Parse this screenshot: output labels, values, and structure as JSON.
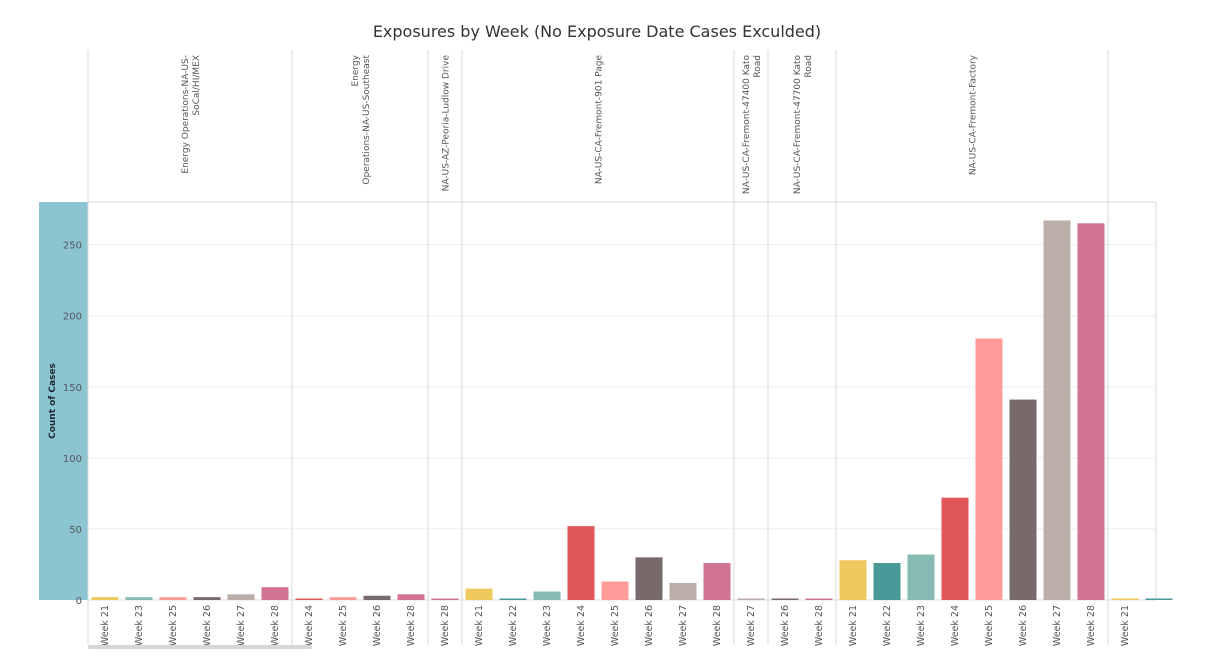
{
  "chart_data": {
    "type": "bar",
    "title": "Exposures by Week (No Exposure Date Cases Exculded)",
    "xlabel": "",
    "ylabel": "Count of Cases",
    "ylim": [
      0,
      280
    ],
    "yticks": [
      0,
      50,
      100,
      150,
      200,
      250
    ],
    "grid": true,
    "week_colors": {
      "Week 21": "#edc95e",
      "Week 22": "#479a95",
      "Week 23": "#85bbb2",
      "Week 24": "#e05759",
      "Week 25": "#ff9c9a",
      "Week 26": "#786a6a",
      "Week 27": "#bbaea8",
      "Week 28": "#d37295"
    },
    "panels": [
      {
        "header": [
          "Energy Operations-NA-US-",
          "SoCal/HI/MEX"
        ],
        "categories": [
          "Week 21",
          "Week 23",
          "Week 25",
          "Week 26",
          "Week 27",
          "Week 28"
        ],
        "values": [
          2,
          2,
          2,
          2,
          4,
          9
        ]
      },
      {
        "header": [
          "Energy",
          "Operations-NA-US-Southeast"
        ],
        "categories": [
          "Week 24",
          "Week 25",
          "Week 26",
          "Week 28"
        ],
        "values": [
          1,
          2,
          3,
          4
        ]
      },
      {
        "header": [
          "NA-US-AZ-Peoria-Ludlow Drive"
        ],
        "categories": [
          "Week 28"
        ],
        "values": [
          1
        ]
      },
      {
        "header": [
          "NA-US-CA-Fremont-901 Page"
        ],
        "categories": [
          "Week 21",
          "Week 22",
          "Week 23",
          "Week 24",
          "Week 25",
          "Week 26",
          "Week 27",
          "Week 28"
        ],
        "values": [
          8,
          1,
          6,
          52,
          13,
          30,
          12,
          26
        ]
      },
      {
        "header": [
          "NA-US-CA-Fremont-47400 Kato",
          "Road"
        ],
        "categories": [
          "Week 27"
        ],
        "values": [
          1
        ]
      },
      {
        "header": [
          "NA-US-CA-Fremont-47700 Kato",
          "Road"
        ],
        "categories": [
          "Week 26",
          "Week 28"
        ],
        "values": [
          1,
          1
        ]
      },
      {
        "header": [
          "NA-US-CA-Fremont-Factory"
        ],
        "categories": [
          "Week 21",
          "Week 22",
          "Week 23",
          "Week 24",
          "Week 25",
          "Week 26",
          "Week 27",
          "Week 28"
        ],
        "values": [
          28,
          26,
          32,
          72,
          184,
          141,
          267,
          265
        ]
      },
      {
        "header": [],
        "categories": [
          "Week 21",
          ""
        ],
        "values": [
          1,
          1
        ]
      }
    ]
  }
}
